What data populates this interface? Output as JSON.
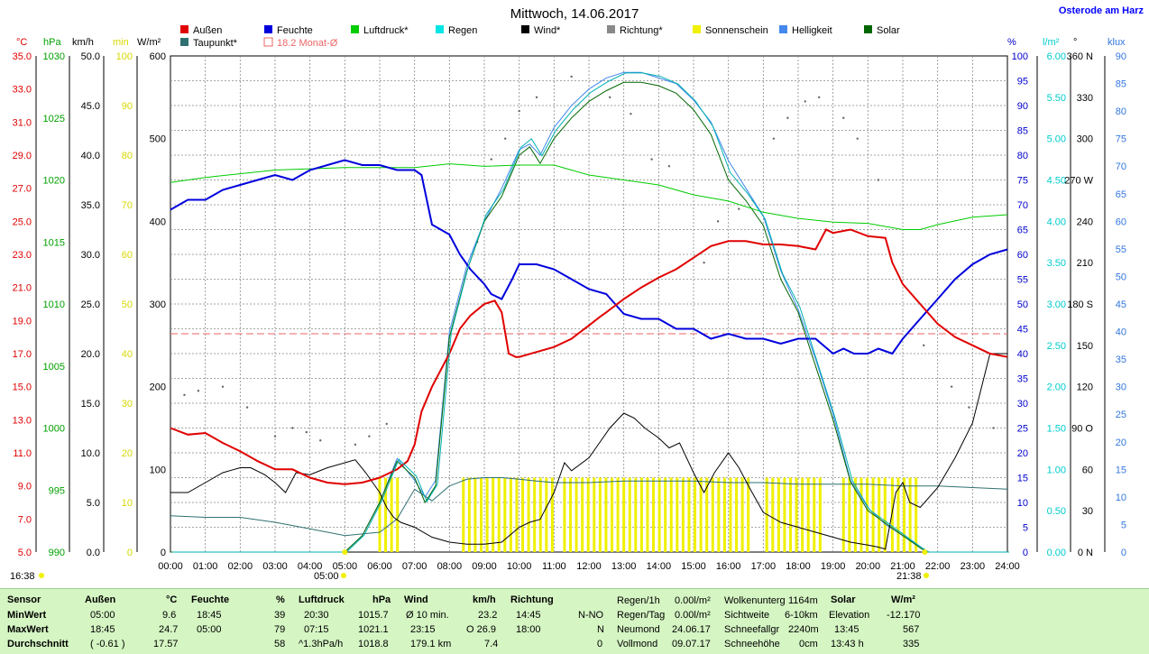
{
  "title": "Mittwoch, 14.06.2017",
  "location": "Osterode am Harz",
  "legend": [
    {
      "label": "Außen",
      "color": "#e00000"
    },
    {
      "label": "Taupunkt*",
      "color": "#2f6f6f"
    },
    {
      "label": "Feuchte",
      "color": "#0000dd"
    },
    {
      "label": "18.2 Monat-Ø",
      "color": "#ee6666"
    },
    {
      "label": "Luftdruck*",
      "color": "#00cc00"
    },
    {
      "label": "Regen",
      "color": "#00e5e5"
    },
    {
      "label": "Wind*",
      "color": "#000000"
    },
    {
      "label": "Richtung*",
      "color": "#888888"
    },
    {
      "label": "Sonnenschein",
      "color": "#f0f000"
    },
    {
      "label": "Helligkeit",
      "color": "#4488ee"
    },
    {
      "label": "Solar",
      "color": "#006600"
    }
  ],
  "axes_headers": {
    "temp": "°C",
    "hpa": "hPa",
    "kmh": "km/h",
    "min": "min",
    "wm2": "W/m²",
    "pct": "%",
    "lm2": "l/m²",
    "deg": "°",
    "klux": "klux"
  },
  "axes_ticks": {
    "temp": [
      "35.0",
      "33.0",
      "31.0",
      "29.0",
      "27.0",
      "25.0",
      "23.0",
      "21.0",
      "19.0",
      "17.0",
      "15.0",
      "13.0",
      "11.0",
      "9.0",
      "7.0",
      "5.0"
    ],
    "hpa": [
      "1030",
      "1025",
      "1020",
      "1015",
      "1010",
      "1005",
      "1000",
      "995",
      "990"
    ],
    "kmh": [
      "50.0",
      "45.0",
      "40.0",
      "35.0",
      "30.0",
      "25.0",
      "20.0",
      "15.0",
      "10.0",
      "5.0",
      "0.0"
    ],
    "min": [
      "100",
      "90",
      "80",
      "70",
      "60",
      "50",
      "40",
      "30",
      "20",
      "10",
      "0"
    ],
    "wm2": [
      "600",
      "500",
      "400",
      "300",
      "200",
      "100",
      "0"
    ],
    "pct": [
      "100",
      "95",
      "90",
      "85",
      "80",
      "75",
      "70",
      "65",
      "60",
      "55",
      "50",
      "45",
      "40",
      "35",
      "30",
      "25",
      "20",
      "15",
      "10",
      "5",
      "0"
    ],
    "lm2": [
      "6.00",
      "5.50",
      "5.00",
      "4.50",
      "4.00",
      "3.50",
      "3.00",
      "2.50",
      "2.00",
      "1.50",
      "1.00",
      "0.50",
      "0.00"
    ],
    "deg": [
      "360 N",
      "330",
      "300",
      "270 W",
      "240",
      "210",
      "180 S",
      "150",
      "120",
      "90 O",
      "60",
      "30",
      "0 N"
    ],
    "klux": [
      "90",
      "85",
      "80",
      "75",
      "70",
      "65",
      "60",
      "55",
      "50",
      "45",
      "40",
      "35",
      "30",
      "25",
      "20",
      "15",
      "10",
      "5",
      "0"
    ]
  },
  "x_ticks": [
    "00:00",
    "01:00",
    "02:00",
    "03:00",
    "04:00",
    "05:00",
    "06:00",
    "07:00",
    "08:00",
    "09:00",
    "10:00",
    "11:00",
    "12:00",
    "13:00",
    "14:00",
    "15:00",
    "16:00",
    "17:00",
    "18:00",
    "19:00",
    "20:00",
    "21:00",
    "22:00",
    "23:00",
    "24:00"
  ],
  "markers": {
    "sunrise_left": "16:38",
    "sunrise": "05:00",
    "sunset": "21:38"
  },
  "chart_data": {
    "type": "line",
    "x_unit": "hours",
    "xlim": [
      0,
      24
    ],
    "series": [
      {
        "name": "Außen",
        "axis": "°C",
        "ylim": [
          5,
          35
        ],
        "x": [
          0,
          0.5,
          1,
          1.5,
          2,
          2.5,
          3,
          3.5,
          4,
          4.5,
          5,
          5.5,
          6,
          6.5,
          6.8,
          7,
          7.2,
          7.5,
          8,
          8.3,
          8.6,
          9,
          9.3,
          9.5,
          9.7,
          9.9,
          10,
          10.5,
          11,
          11.5,
          12,
          12.3,
          12.5,
          13,
          13.5,
          14,
          14.5,
          15,
          15.5,
          16,
          16.5,
          17,
          17.5,
          18,
          18.5,
          18.8,
          19,
          19.5,
          20,
          20.5,
          20.7,
          21,
          21.5,
          22,
          22.5,
          23,
          23.5,
          24
        ],
        "y": [
          12.5,
          12.1,
          12.2,
          11.6,
          11.1,
          10.5,
          10.0,
          10.0,
          9.5,
          9.2,
          9.1,
          9.2,
          9.5,
          10.0,
          10.5,
          11.5,
          13.5,
          15.0,
          17.0,
          18.5,
          19.3,
          20.0,
          20.2,
          19.5,
          17.0,
          16.8,
          16.8,
          17.1,
          17.4,
          17.9,
          18.7,
          19.2,
          19.5,
          20.3,
          21.0,
          21.6,
          22.1,
          22.8,
          23.5,
          23.8,
          23.8,
          23.6,
          23.6,
          23.5,
          23.3,
          24.5,
          24.3,
          24.5,
          24.1,
          24.0,
          22.5,
          21.2,
          20.0,
          18.8,
          18.0,
          17.5,
          17.0,
          16.8
        ]
      },
      {
        "name": "Feuchte",
        "axis": "%",
        "ylim": [
          0,
          100
        ],
        "x": [
          0,
          0.5,
          1,
          1.5,
          2,
          2.5,
          3,
          3.5,
          4,
          4.5,
          5,
          5.5,
          6,
          6.5,
          7,
          7.2,
          7.5,
          8,
          8.3,
          8.6,
          9,
          9.2,
          9.5,
          9.8,
          10,
          10.5,
          11,
          11.5,
          12,
          12.5,
          13,
          13.5,
          14,
          14.5,
          15,
          15.5,
          16,
          16.5,
          17,
          17.5,
          18,
          18.5,
          19,
          19.3,
          19.6,
          20,
          20.3,
          20.7,
          21,
          21.5,
          22,
          22.5,
          23,
          23.5,
          24
        ],
        "y": [
          69,
          71,
          71,
          73,
          74,
          75,
          76,
          75,
          77,
          78,
          79,
          78,
          78,
          77,
          77,
          76,
          66,
          64,
          60,
          57,
          54,
          52,
          51,
          55,
          58,
          58,
          57,
          55,
          53,
          52,
          48,
          47,
          47,
          45,
          45,
          43,
          44,
          43,
          43,
          42,
          43,
          43,
          40,
          41,
          40,
          40,
          41,
          40,
          43,
          47,
          51,
          55,
          58,
          60,
          61
        ]
      },
      {
        "name": "Taupunkt*",
        "axis": "°C",
        "ylim": [
          5,
          35
        ],
        "x": [
          0,
          1,
          2,
          3,
          4,
          5,
          6,
          6.5,
          7,
          7.5,
          8,
          8.5,
          9,
          9.5,
          10,
          10.5,
          11,
          12,
          13,
          14,
          15,
          16,
          17,
          18,
          19,
          20,
          21,
          22,
          23,
          24
        ],
        "y": [
          7.2,
          7.1,
          7.1,
          6.8,
          6.4,
          6.0,
          6.2,
          7.0,
          8.8,
          8.1,
          9.0,
          9.4,
          9.5,
          9.5,
          9.4,
          9.3,
          9.2,
          9.2,
          9.3,
          9.3,
          9.3,
          9.2,
          9.2,
          9.1,
          9.1,
          9.1,
          9.0,
          9.0,
          8.9,
          8.8
        ]
      },
      {
        "name": "Luftdruck*",
        "axis": "hPa",
        "ylim": [
          990,
          1030
        ],
        "x": [
          0,
          1,
          2,
          3,
          4,
          5,
          6,
          7,
          8,
          9,
          10,
          11,
          12,
          13,
          14,
          15,
          16,
          17,
          18,
          19,
          20,
          21,
          21.5,
          22,
          23,
          24
        ],
        "y": [
          1019.8,
          1020.2,
          1020.5,
          1020.8,
          1020.9,
          1021.0,
          1021.0,
          1021.0,
          1021.3,
          1021.1,
          1021.2,
          1021.2,
          1020.4,
          1020.0,
          1019.6,
          1018.8,
          1018.3,
          1017.4,
          1016.9,
          1016.6,
          1016.5,
          1016.0,
          1016.0,
          1016.4,
          1017.0,
          1017.2
        ]
      },
      {
        "name": "Wind*",
        "axis": "km/h",
        "ylim": [
          0,
          50
        ],
        "x": [
          0,
          0.5,
          1,
          1.5,
          2,
          2.3,
          2.7,
          3,
          3.3,
          3.6,
          4,
          4.5,
          5,
          5.3,
          5.6,
          6,
          6.2,
          6.4,
          6.6,
          7,
          7.5,
          8,
          8.5,
          9,
          9.5,
          10,
          10.3,
          10.6,
          11,
          11.3,
          11.5,
          12,
          12.3,
          12.6,
          13,
          13.3,
          13.6,
          14,
          14.3,
          14.6,
          15,
          15.3,
          15.6,
          16,
          16.3,
          16.6,
          17,
          17.5,
          18,
          18.5,
          19,
          19.5,
          20,
          20.3,
          20.5,
          20.8,
          21,
          21.2,
          21.5,
          22,
          22.5,
          23,
          23.5,
          24
        ],
        "y": [
          6.0,
          6.0,
          7.0,
          8.0,
          8.5,
          8.5,
          7.8,
          7.0,
          6.0,
          8.0,
          7.8,
          8.5,
          9.0,
          9.3,
          8.0,
          6.0,
          4.5,
          3.5,
          3.0,
          2.5,
          1.5,
          1.0,
          0.8,
          0.8,
          1.0,
          2.5,
          3.0,
          3.3,
          6.0,
          9.0,
          8.2,
          9.5,
          11.0,
          12.5,
          14.0,
          13.5,
          12.5,
          11.5,
          10.5,
          11.0,
          8.0,
          6.0,
          8.0,
          10.0,
          8.5,
          6.5,
          4.0,
          3.0,
          2.5,
          2.0,
          1.5,
          1.0,
          0.7,
          0.5,
          0.3,
          6.0,
          7.0,
          5.0,
          4.5,
          6.5,
          9.5,
          13.0,
          20.0,
          20.0
        ]
      },
      {
        "name": "Solar",
        "axis": "W/m²",
        "ylim": [
          0,
          600
        ],
        "x": [
          0,
          5,
          5.5,
          6,
          6.5,
          7,
          7.3,
          7.6,
          8,
          8.5,
          9,
          9.5,
          10,
          10.3,
          10.6,
          11,
          11.5,
          12,
          12.5,
          13,
          13.5,
          14,
          14.5,
          15,
          15.5,
          16,
          16.5,
          17,
          17.5,
          18,
          18.5,
          19,
          19.5,
          20,
          20.5,
          21,
          21.5,
          21.7,
          22,
          24
        ],
        "y": [
          0,
          0,
          20,
          60,
          110,
          90,
          60,
          80,
          260,
          340,
          400,
          430,
          480,
          490,
          470,
          500,
          525,
          545,
          558,
          568,
          568,
          564,
          555,
          535,
          505,
          450,
          425,
          395,
          330,
          290,
          225,
          160,
          85,
          50,
          35,
          20,
          5,
          0,
          0,
          0
        ]
      },
      {
        "name": "Helligkeit",
        "axis": "klux",
        "ylim": [
          0,
          90
        ],
        "x": [
          0,
          5,
          5.5,
          6,
          6.5,
          7,
          7.3,
          7.6,
          8,
          8.5,
          9,
          9.5,
          10,
          10.3,
          10.6,
          11,
          11.5,
          12,
          12.5,
          13,
          13.5,
          14,
          14.5,
          15,
          15.5,
          16,
          16.5,
          17,
          17.5,
          18,
          18.5,
          19,
          19.5,
          20,
          20.5,
          21,
          21.5,
          21.7,
          22,
          24
        ],
        "y": [
          0,
          0,
          3,
          9,
          17,
          13,
          10,
          13,
          40,
          52,
          60,
          66,
          73,
          74,
          72,
          77,
          81,
          84,
          86,
          87,
          87,
          86,
          85,
          82,
          78,
          71,
          66,
          61,
          51,
          44,
          35,
          25,
          13,
          8,
          5,
          3,
          1,
          0,
          0,
          0
        ]
      }
    ],
    "monat_avg": {
      "label": "18.2 Monat-Ø",
      "value": 18.2
    }
  },
  "footer": {
    "col_sensor": {
      "header": "Sensor",
      "rows": [
        "MinWert",
        "MaxWert",
        "Durchschnitt"
      ]
    },
    "col_aussen": {
      "header": "Außen",
      "unit": "°C",
      "rows": [
        [
          "05:00",
          "9.6"
        ],
        [
          "18:45",
          "24.7"
        ],
        [
          "( -0.61 )",
          "17.57"
        ]
      ]
    },
    "col_feuchte": {
      "header": "Feuchte",
      "unit": "%",
      "rows": [
        [
          "18:45",
          "39"
        ],
        [
          "05:00",
          "79"
        ],
        [
          "",
          "58"
        ]
      ]
    },
    "col_luftdruck": {
      "header": "Luftdruck",
      "unit": "hPa",
      "rows": [
        [
          "20:30",
          "1015.7"
        ],
        [
          "07:15",
          "1021.1"
        ],
        [
          "^1.3hPa/h",
          "1018.8"
        ]
      ]
    },
    "col_wind": {
      "header": "Wind",
      "unit": "km/h",
      "rows": [
        [
          "Ø 10 min.",
          "23.2"
        ],
        [
          "23:15",
          "O 26.9"
        ],
        [
          "179.1 km",
          "7.4"
        ]
      ]
    },
    "col_richtung": {
      "header": "Richtung",
      "rows": [
        [
          "14:45",
          "N-NO"
        ],
        [
          "18:00",
          "N"
        ],
        [
          "",
          "0"
        ]
      ]
    },
    "col_regen": {
      "rows": [
        [
          "Regen/1h",
          "0.00l/m²"
        ],
        [
          "Regen/Tag",
          "0.00l/m²"
        ],
        [
          "Neumond",
          "24.06.17"
        ],
        [
          "Vollmond",
          "09.07.17"
        ]
      ]
    },
    "col_wolken": {
      "rows": [
        [
          "Wolkenunterg",
          "1164m"
        ],
        [
          "Sichtweite",
          "6-10km"
        ],
        [
          "Schneefallgr",
          "2240m"
        ],
        [
          "Schneehöhe",
          "0cm"
        ]
      ]
    },
    "col_solar": {
      "header": "Solar",
      "unit": "W/m²",
      "rows": [
        [
          "Elevation",
          "-12.170"
        ],
        [
          "13:45",
          "567"
        ],
        [
          "13:43 h",
          "335"
        ]
      ]
    }
  }
}
